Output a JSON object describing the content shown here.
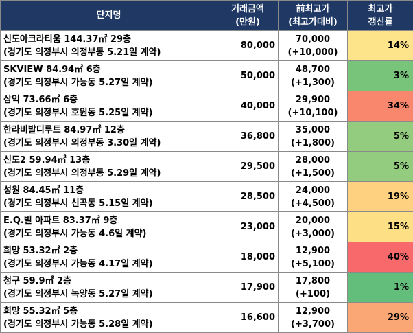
{
  "headers": {
    "name": "단지명",
    "amount": [
      "거래금액",
      "(만원)"
    ],
    "prev": [
      "前최고가",
      "(최고가대비)"
    ],
    "rate": [
      "최고가",
      "갱신률"
    ]
  },
  "rows": [
    {
      "name": "신도아크라티움 144.37㎡ 29층",
      "location": "(경기도 의정부시 의정부동 5.21일 계약)",
      "amount": "80,000",
      "prev_high": "70,000",
      "diff": "(+10,000)",
      "rate": "14%",
      "color": "#fde38a"
    },
    {
      "name": "SKVIEW 84.94㎡ 6층",
      "location": "(경기도 의정부시 가능동 5.27일 계약)",
      "amount": "50,000",
      "prev_high": "48,700",
      "diff": "(+1,300)",
      "rate": "3%",
      "color": "#79c47b"
    },
    {
      "name": "삼익 73.66㎡ 6층",
      "location": "(경기도 의정부시 호원동 5.25일 계약)",
      "amount": "40,000",
      "prev_high": "29,900",
      "diff": "(+10,100)",
      "rate": "34%",
      "color": "#f8876d"
    },
    {
      "name": "한라비발디루트 84.97㎡ 12층",
      "location": "(경기도 의정부시 의정부동 3.30일 계약)",
      "amount": "36,800",
      "prev_high": "35,000",
      "diff": "(+1,800)",
      "rate": "5%",
      "color": "#93cc7e"
    },
    {
      "name": "신도2 59.94㎡ 13층",
      "location": "(경기도 의정부시 의정부동 5.29일 계약)",
      "amount": "29,500",
      "prev_high": "28,000",
      "diff": "(+1,500)",
      "rate": "5%",
      "color": "#93cc7e"
    },
    {
      "name": "성원 84.45㎡ 11층",
      "location": "(경기도 의정부시 신곡동 5.15일 계약)",
      "amount": "28,500",
      "prev_high": "24,000",
      "diff": "(+4,500)",
      "rate": "19%",
      "color": "#fdd17f"
    },
    {
      "name": "E.Q.빌 아파트 83.37㎡ 9층",
      "location": "(경기도 의정부시 가능동 4.6일 계약)",
      "amount": "23,000",
      "prev_high": "20,000",
      "diff": "(+3,000)",
      "rate": "15%",
      "color": "#fde085"
    },
    {
      "name": "희망 53.32㎡ 2층",
      "location": "(경기도 의정부시 가능동 4.17일 계약)",
      "amount": "18,000",
      "prev_high": "12,900",
      "diff": "(+5,100)",
      "rate": "40%",
      "color": "#f8696b"
    },
    {
      "name": "청구 59.9㎡ 2층",
      "location": "(경기도 의정부시 녹양동 5.27일 계약)",
      "amount": "17,900",
      "prev_high": "17,800",
      "diff": "(+100)",
      "rate": "1%",
      "color": "#63be7b"
    },
    {
      "name": "희망 55.32㎡ 5층",
      "location": "(경기도 의정부시 가능동 5.28일 계약)",
      "amount": "16,600",
      "prev_high": "12,900",
      "diff": "(+3,700)",
      "rate": "29%",
      "color": "#faa775"
    }
  ]
}
